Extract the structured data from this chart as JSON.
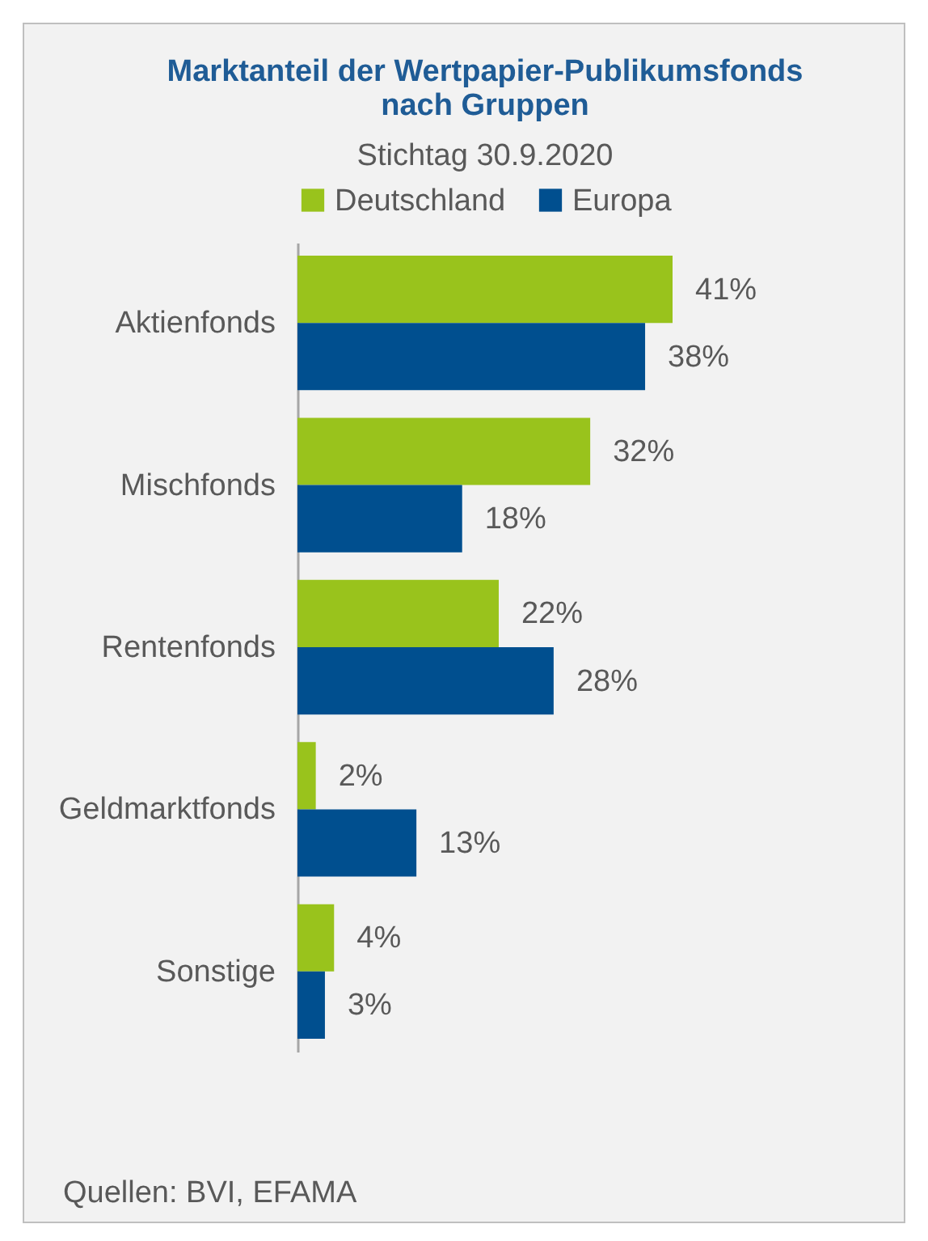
{
  "chart_data": {
    "type": "bar",
    "orientation": "horizontal",
    "title": "Marktanteil der Wertpapier-Publikumsfonds nach Gruppen",
    "subtitle": "Stichtag 30.9.2020",
    "categories": [
      "Aktienfonds",
      "Mischfonds",
      "Rentenfonds",
      "Geldmarktfonds",
      "Sonstige"
    ],
    "series": [
      {
        "name": "Deutschland",
        "color": "#99c31c",
        "values": [
          41,
          32,
          22,
          2,
          4
        ],
        "value_labels": [
          "41%",
          "32%",
          "22%",
          "2%",
          "4%"
        ]
      },
      {
        "name": "Europa",
        "color": "#004f8f",
        "values": [
          38,
          18,
          28,
          13,
          3
        ],
        "value_labels": [
          "38%",
          "18%",
          "28%",
          "13%",
          "3%"
        ]
      }
    ],
    "legend": "top",
    "grid": false,
    "annotations": [
      "Quellen: BVI, EFAMA"
    ]
  }
}
